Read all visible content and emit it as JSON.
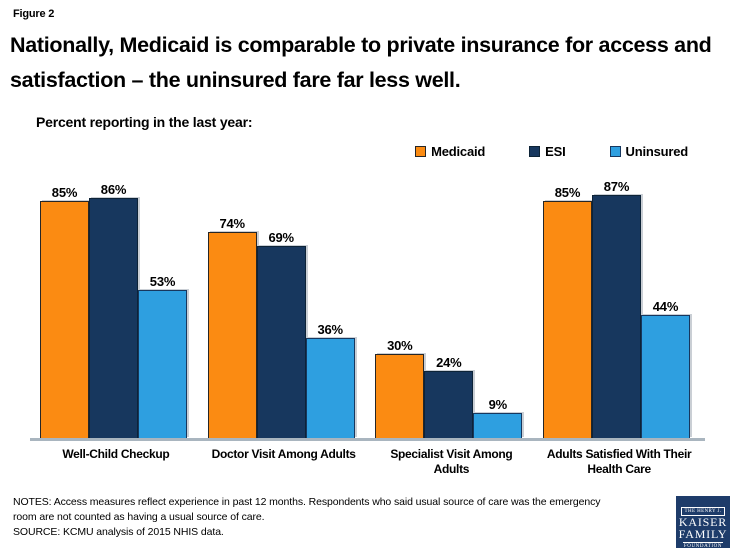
{
  "figure_label": "Figure 2",
  "title": "Nationally, Medicaid is comparable to private insurance for access and satisfaction – the uninsured fare far less well.",
  "subtitle": "Percent reporting in the last year:",
  "notes": "NOTES: Access measures reflect experience in past 12 months.  Respondents  who said usual source of care was the emergency\nroom are not counted as having a usual source of care.\nSOURCE: KCMU analysis of 2015 NHIS  data.",
  "logo": {
    "top": "THE HENRY J.",
    "name1": "KAISER",
    "name2": "FAMILY",
    "bottom": "FOUNDATION"
  },
  "colors": {
    "medicaid_orange": "#FB8B12",
    "esi_navy": "#17375E",
    "uninsured_blue": "#2E9FE0",
    "axis_line": "#A9B5BF",
    "logo_background": "#1E3C6A"
  },
  "chart_data": {
    "type": "bar",
    "title": "Percent reporting in the last year:",
    "categories": [
      "Well-Child Checkup",
      "Doctor Visit Among Adults",
      "Specialist Visit Among\nAdults",
      "Adults Satisfied With Their\nHealth Care"
    ],
    "series": [
      {
        "name": "Medicaid",
        "color": "#FB8B12",
        "border": "#262626",
        "values": [
          85,
          74,
          30,
          85
        ]
      },
      {
        "name": "ESI",
        "color": "#17375E",
        "border": "#0D2337",
        "values": [
          86,
          69,
          24,
          87
        ]
      },
      {
        "name": "Uninsured",
        "color": "#2E9FE0",
        "border": "#17375E",
        "values": [
          53,
          36,
          9,
          44
        ]
      }
    ],
    "value_suffix": "%",
    "value_labels": [
      "85%",
      "86%",
      "53%",
      "74%",
      "69%",
      "36%",
      "30%",
      "24%",
      "9%",
      "85%",
      "87%",
      "44%"
    ],
    "xlabel": "",
    "ylabel": "",
    "ylim": [
      0,
      100
    ],
    "grid": false,
    "legend_position": "top-right"
  }
}
